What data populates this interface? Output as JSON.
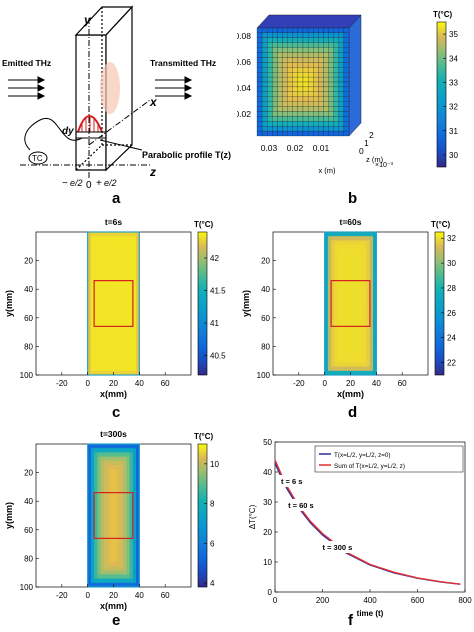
{
  "panel_labels": {
    "a": "a",
    "b": "b",
    "c": "c",
    "d": "d",
    "e": "e",
    "f": "f"
  },
  "schematic": {
    "emitted": "Emitted THz",
    "transmitted": "Transmitted THz",
    "axis_x": "x",
    "axis_y": "y",
    "axis_z": "z",
    "dy": "dy",
    "tc": "TC",
    "profile": "Parabolic profile T(z)",
    "tick_left": "e/2",
    "tick_left_sign": "−",
    "tick_zero": "0",
    "tick_right": "e/2",
    "tick_right_sign": "+"
  },
  "colors": {
    "box_red": "#d62020",
    "line_blue": "#2c2ca0",
    "line_red": "#e03030",
    "parula_low": "#3d36b8",
    "parula_mid": "#15b8a6",
    "parula_high": "#f5f51e"
  },
  "chart_data": [
    {
      "id": "b",
      "type": "heatmap",
      "ylabel": "y (m)",
      "xlabel": "x (m)",
      "zlabel": "z (m)",
      "zexp": "×10⁻³",
      "y_ticks": [
        "0.08",
        "0.06",
        "0.04",
        "0.02"
      ],
      "x_ticks": [
        "0.03",
        "0.02",
        "0.01"
      ],
      "z_ticks": [
        "2",
        "1",
        "0"
      ],
      "colorbar_title": "T(°C)",
      "colorbar_ticks": [
        "35",
        "34",
        "33",
        "32",
        "31",
        "30"
      ],
      "clim": [
        29.5,
        35.5
      ]
    },
    {
      "id": "c",
      "type": "heatmap",
      "title": "t=6s",
      "xlabel": "x(mm)",
      "ylabel": "y(mm)",
      "x_ticks": [
        "-20",
        "0",
        "20",
        "40",
        "60"
      ],
      "y_ticks": [
        "20",
        "40",
        "60",
        "80",
        "100"
      ],
      "colorbar_title": "T(°C)",
      "colorbar_ticks": [
        "42",
        "41.5",
        "41",
        "40.5"
      ],
      "clim": [
        40.2,
        42.4
      ]
    },
    {
      "id": "d",
      "type": "heatmap",
      "title": "t=60s",
      "xlabel": "x(mm)",
      "ylabel": "y(mm)",
      "x_ticks": [
        "-20",
        "0",
        "20",
        "40",
        "60"
      ],
      "y_ticks": [
        "20",
        "40",
        "60",
        "80",
        "100"
      ],
      "colorbar_title": "T(°C)",
      "colorbar_ticks": [
        "32",
        "30",
        "28",
        "26",
        "24",
        "22"
      ],
      "clim": [
        21,
        32.5
      ]
    },
    {
      "id": "e",
      "type": "heatmap",
      "title": "t=300s",
      "xlabel": "x(mm)",
      "ylabel": "y(mm)",
      "x_ticks": [
        "-20",
        "0",
        "20",
        "40",
        "60"
      ],
      "y_ticks": [
        "20",
        "40",
        "60",
        "80",
        "100"
      ],
      "colorbar_title": "T(°C)",
      "colorbar_ticks": [
        "10",
        "8",
        "6",
        "4"
      ],
      "clim": [
        3.8,
        11
      ]
    },
    {
      "id": "f",
      "type": "line",
      "xlabel": "time (t)",
      "ylabel": "ΔT(°C)",
      "xlim": [
        0,
        800
      ],
      "ylim": [
        0,
        50
      ],
      "x_ticks": [
        "0",
        "200",
        "400",
        "600",
        "800"
      ],
      "y_ticks": [
        "0",
        "10",
        "20",
        "30",
        "40",
        "50"
      ],
      "legend": [
        "T(x=L/2, y=L/2, z=0)",
        "Sum of T(x=L/2, y=L/2, z)"
      ],
      "annotations": [
        "t = 6 s",
        "t = 60 s",
        "t = 300 s"
      ],
      "series": [
        {
          "name": "T(x=L/2, y=L/2, z=0)",
          "x": [
            0,
            25,
            50,
            100,
            150,
            200,
            300,
            400,
            500,
            600,
            700,
            780
          ],
          "y": [
            43,
            38.5,
            34.5,
            28,
            23,
            19,
            13,
            9,
            6.4,
            4.6,
            3.3,
            2.6
          ]
        },
        {
          "name": "Sum of T(x=L/2, y=L/2, z)",
          "x": [
            0,
            25,
            50,
            100,
            150,
            200,
            300,
            400,
            500,
            600,
            700,
            780
          ],
          "y": [
            44,
            39.5,
            35.3,
            28.6,
            23.5,
            19.5,
            13.3,
            9.2,
            6.6,
            4.7,
            3.4,
            2.6
          ]
        }
      ]
    }
  ]
}
